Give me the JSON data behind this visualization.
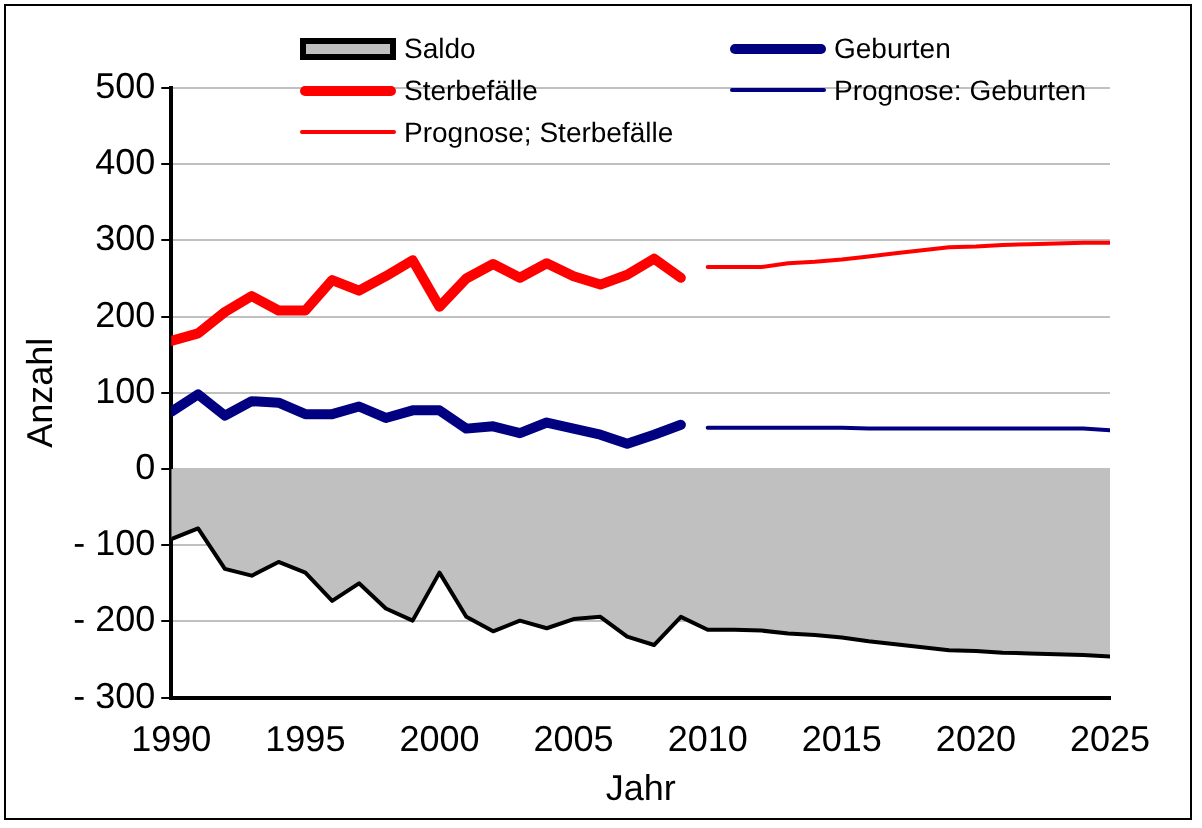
{
  "chart_data": {
    "type": "line",
    "xlabel": "Jahr",
    "ylabel": "Anzahl",
    "xlim": [
      1990,
      2025
    ],
    "xticks": [
      1990,
      1995,
      2000,
      2005,
      2010,
      2015,
      2020,
      2025
    ],
    "ylim": [
      -300,
      500
    ],
    "yticks": [
      {
        "value": -300,
        "label": "- 300"
      },
      {
        "value": -200,
        "label": "- 200"
      },
      {
        "value": -100,
        "label": "- 100"
      },
      0,
      100,
      200,
      300,
      400,
      500
    ],
    "grid": "y",
    "legend": "top",
    "marker": "none",
    "line_style": "solid",
    "series": [
      {
        "name": "Saldo",
        "type": "area",
        "color": "#c0c0c0",
        "x": [
          1990,
          1991,
          1992,
          1993,
          1994,
          1995,
          1996,
          1997,
          1998,
          1999,
          2000,
          2001,
          2002,
          2003,
          2004,
          2005,
          2006,
          2007,
          2008,
          2009,
          2010,
          2011,
          2012,
          2013,
          2014,
          2015,
          2016,
          2017,
          2018,
          2019,
          2020,
          2021,
          2022,
          2023,
          2024,
          2025
        ],
        "values": [
          -92,
          -78,
          -131,
          -140,
          -122,
          -136,
          -173,
          -150,
          -183,
          -199,
          -136,
          -194,
          -213,
          -199,
          -209,
          -197,
          -194,
          -220,
          -231,
          -194,
          -211,
          -211,
          -212,
          -216,
          -218,
          -221,
          -226,
          -230,
          -234,
          -238,
          -239,
          -241,
          -242,
          -243,
          -244,
          -246
        ]
      },
      {
        "name": "Geburten",
        "color": "#000080",
        "x": [
          1990,
          1991,
          1992,
          1993,
          1994,
          1995,
          1996,
          1997,
          1998,
          1999,
          2000,
          2001,
          2002,
          2003,
          2004,
          2005,
          2006,
          2007,
          2008,
          2009
        ],
        "values": [
          75,
          98,
          70,
          89,
          87,
          72,
          72,
          82,
          67,
          77,
          77,
          53,
          56,
          47,
          61,
          53,
          45,
          33,
          45,
          58
        ]
      },
      {
        "name": "Sterbefälle",
        "color": "#ff0000",
        "x": [
          1990,
          1991,
          1992,
          1993,
          1994,
          1995,
          1996,
          1997,
          1998,
          1999,
          2000,
          2001,
          2002,
          2003,
          2004,
          2005,
          2006,
          2007,
          2008,
          2009
        ],
        "values": [
          168,
          178,
          206,
          227,
          208,
          208,
          248,
          234,
          253,
          274,
          213,
          250,
          269,
          251,
          270,
          253,
          242,
          255,
          276,
          251
        ]
      },
      {
        "name": "Prognose: Geburten",
        "color": "#000080",
        "x": [
          2010,
          2011,
          2012,
          2013,
          2014,
          2015,
          2016,
          2017,
          2018,
          2019,
          2020,
          2021,
          2022,
          2023,
          2024,
          2025
        ],
        "values": [
          54,
          54,
          54,
          54,
          54,
          54,
          53,
          53,
          53,
          53,
          53,
          53,
          53,
          53,
          53,
          51
        ]
      },
      {
        "name": "Prognose; Sterbefälle",
        "color": "#ff0000",
        "x": [
          2010,
          2011,
          2012,
          2013,
          2014,
          2015,
          2016,
          2017,
          2018,
          2019,
          2020,
          2021,
          2022,
          2023,
          2024,
          2025
        ],
        "values": [
          265,
          265,
          265,
          270,
          272,
          275,
          279,
          283,
          287,
          291,
          292,
          294,
          295,
          296,
          297,
          297
        ]
      }
    ]
  }
}
